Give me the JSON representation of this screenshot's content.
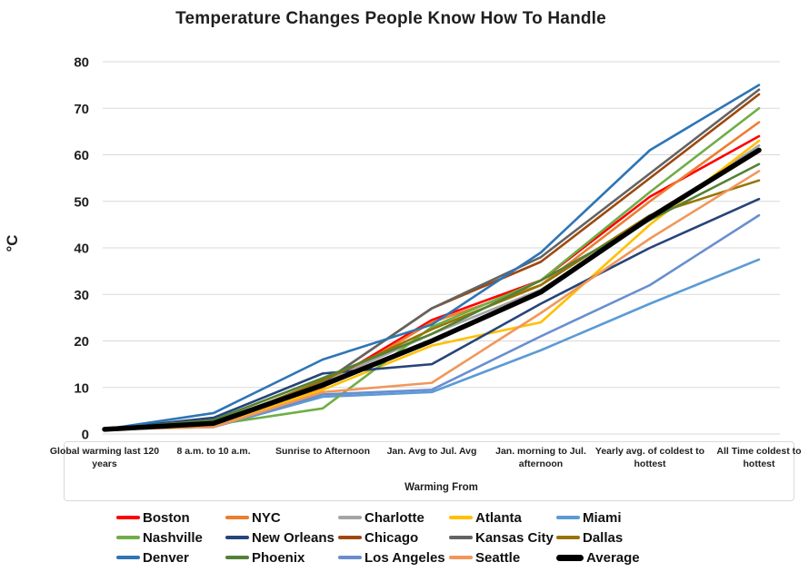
{
  "chart_data": {
    "type": "line",
    "title": "Temperature Changes People Know How To Handle",
    "xlabel": "Warming From",
    "ylabel": "°C",
    "ylim": [
      0,
      80
    ],
    "ytick_step": 10,
    "ytick_labels": [
      "0",
      "10",
      "20",
      "30",
      "40",
      "50",
      "60",
      "70",
      "80"
    ],
    "grid": "horizontal",
    "gridline_color": "#d9d9d9",
    "text_color": "#1f1f1f",
    "legend_position": "bottom",
    "categories": [
      "Global warming last 120 years",
      "8 a.m. to 10 a.m.",
      "Sunrise to Afternoon",
      "Jan. Avg to Jul. Avg",
      "Jan. morning to Jul. afternoon",
      "Yearly avg. of coldest to hottest",
      "All Time coldest to hottest"
    ],
    "series": [
      {
        "name": "Boston",
        "color": "#ff0000",
        "width": 2.6,
        "values": [
          1,
          2,
          10.5,
          24.5,
          33,
          51,
          64
        ]
      },
      {
        "name": "NYC",
        "color": "#ed7d31",
        "width": 2.6,
        "values": [
          1,
          2,
          10,
          24,
          32,
          50,
          67
        ]
      },
      {
        "name": "Charlotte",
        "color": "#a5a5a5",
        "width": 2.6,
        "values": [
          1,
          2,
          11,
          21.5,
          31,
          46,
          62
        ]
      },
      {
        "name": "Atlanta",
        "color": "#ffc000",
        "width": 2.6,
        "values": [
          1,
          2,
          9.5,
          19,
          24,
          45,
          63
        ]
      },
      {
        "name": "Miami",
        "color": "#5b9bd5",
        "width": 2.6,
        "values": [
          1,
          1.5,
          8,
          9,
          18,
          28,
          37.5
        ]
      },
      {
        "name": "Nashville",
        "color": "#70ad47",
        "width": 2.6,
        "values": [
          1,
          2,
          5.5,
          23,
          33,
          52,
          70
        ]
      },
      {
        "name": "New Orleans",
        "color": "#264478",
        "width": 2.6,
        "values": [
          1,
          3.5,
          13,
          15,
          28,
          40,
          50.5
        ]
      },
      {
        "name": "Chicago",
        "color": "#9e480e",
        "width": 2.6,
        "values": [
          1,
          2.5,
          11,
          27,
          37,
          55,
          73
        ]
      },
      {
        "name": "Kansas City",
        "color": "#636363",
        "width": 2.6,
        "values": [
          1,
          2.5,
          11,
          27,
          38,
          56,
          74
        ]
      },
      {
        "name": "Dallas",
        "color": "#997300",
        "width": 2.6,
        "values": [
          1,
          2,
          11.5,
          22.5,
          32,
          47,
          54.5
        ]
      },
      {
        "name": "Denver",
        "color": "#2e75b6",
        "width": 2.6,
        "values": [
          1,
          4.5,
          16,
          23.5,
          39,
          61,
          75
        ]
      },
      {
        "name": "Phoenix",
        "color": "#538135",
        "width": 2.6,
        "values": [
          1,
          3,
          12,
          21.5,
          33,
          46,
          58
        ]
      },
      {
        "name": "Los Angeles",
        "color": "#698ed0",
        "width": 2.6,
        "values": [
          1,
          1.5,
          8.5,
          9.5,
          21,
          32,
          47
        ]
      },
      {
        "name": "Seattle",
        "color": "#f1975a",
        "width": 2.6,
        "values": [
          1,
          1.5,
          9,
          11,
          26,
          42,
          56.5
        ]
      },
      {
        "name": "Average",
        "color": "#000000",
        "width": 5.5,
        "is_average": true,
        "values": [
          1,
          2.3,
          10.5,
          20,
          30.5,
          46.5,
          61
        ]
      }
    ]
  }
}
